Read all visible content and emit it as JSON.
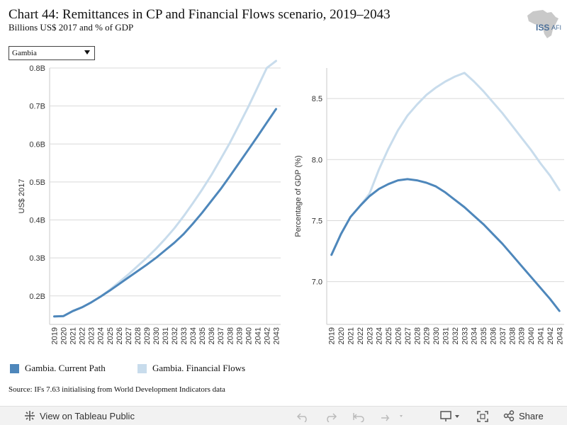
{
  "header": {
    "title": "Chart 44: Remittances in CP and Financial Flows scenario, 2019–2043",
    "subtitle": "Billions US$ 2017 and % of GDP",
    "logo_text": "ISS",
    "logo_suffix": "AFI"
  },
  "filter": {
    "selected": "Gambia"
  },
  "legend": [
    {
      "label": "Gambia. Current Path",
      "color": "#4e87bb"
    },
    {
      "label": "Gambia. Financial Flows",
      "color": "#c8dcec"
    }
  ],
  "source": "Source: IFs 7.63 initialising from World Development Indicators data",
  "toolbar": {
    "view_label": "View on Tableau Public",
    "share_label": "Share"
  },
  "chart_data": [
    {
      "type": "line",
      "title": "",
      "xlabel": "",
      "ylabel": "US$ 2017",
      "x": [
        2019,
        2020,
        2021,
        2022,
        2023,
        2024,
        2025,
        2026,
        2027,
        2028,
        2029,
        2030,
        2031,
        2032,
        2033,
        2034,
        2035,
        2036,
        2037,
        2038,
        2039,
        2040,
        2041,
        2042,
        2043
      ],
      "ylim": [
        0.125,
        0.8
      ],
      "yticks": [
        0.2,
        0.3,
        0.4,
        0.5,
        0.6,
        0.7,
        0.8
      ],
      "ytick_labels": [
        "0.2B",
        "0.3B",
        "0.4B",
        "0.5B",
        "0.6B",
        "0.7B",
        "0.8B"
      ],
      "grid": true,
      "series": [
        {
          "name": "Gambia. Current Path",
          "color": "#4e87bb",
          "values": [
            0.146,
            0.147,
            0.16,
            0.17,
            0.183,
            0.198,
            0.214,
            0.231,
            0.248,
            0.265,
            0.282,
            0.3,
            0.32,
            0.34,
            0.363,
            0.39,
            0.419,
            0.45,
            0.481,
            0.515,
            0.55,
            0.585,
            0.62,
            0.656,
            0.692
          ]
        },
        {
          "name": "Gambia. Financial Flows",
          "color": "#c8dcec",
          "values": [
            0.146,
            0.147,
            0.16,
            0.17,
            0.183,
            0.198,
            0.216,
            0.236,
            0.256,
            0.278,
            0.3,
            0.324,
            0.35,
            0.378,
            0.41,
            0.444,
            0.48,
            0.518,
            0.56,
            0.603,
            0.65,
            0.698,
            0.749,
            0.8,
            0.852
          ]
        }
      ]
    },
    {
      "type": "line",
      "title": "",
      "xlabel": "",
      "ylabel": "Percentage of GDP (%)",
      "x": [
        2019,
        2020,
        2021,
        2022,
        2023,
        2024,
        2025,
        2026,
        2027,
        2028,
        2029,
        2030,
        2031,
        2032,
        2033,
        2034,
        2035,
        2036,
        2037,
        2038,
        2039,
        2040,
        2041,
        2042,
        2043
      ],
      "ylim": [
        6.65,
        8.75
      ],
      "yticks": [
        7.0,
        7.5,
        8.0,
        8.5
      ],
      "ytick_labels": [
        "7.0",
        "7.5",
        "8.0",
        "8.5"
      ],
      "grid": true,
      "series": [
        {
          "name": "Gambia. Current Path",
          "color": "#4e87bb",
          "values": [
            7.22,
            7.39,
            7.53,
            7.62,
            7.7,
            7.76,
            7.8,
            7.83,
            7.84,
            7.83,
            7.81,
            7.78,
            7.73,
            7.67,
            7.61,
            7.54,
            7.47,
            7.39,
            7.31,
            7.22,
            7.13,
            7.04,
            6.95,
            6.86,
            6.76
          ]
        },
        {
          "name": "Gambia. Financial Flows",
          "color": "#c8dcec",
          "values": [
            7.22,
            7.39,
            7.53,
            7.62,
            7.72,
            7.92,
            8.09,
            8.24,
            8.36,
            8.45,
            8.53,
            8.59,
            8.64,
            8.68,
            8.71,
            8.64,
            8.56,
            8.47,
            8.38,
            8.28,
            8.18,
            8.08,
            7.97,
            7.87,
            7.75
          ]
        }
      ]
    }
  ]
}
